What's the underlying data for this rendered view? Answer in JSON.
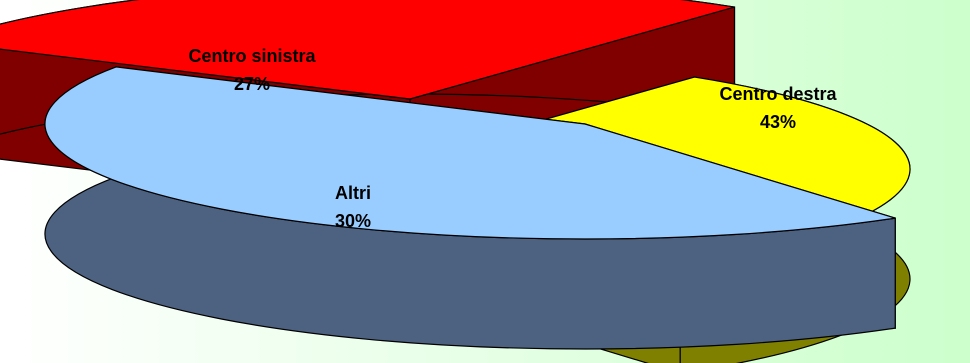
{
  "chart_data": {
    "type": "pie",
    "style": "exploded-3d",
    "background_color": "#ccffcc",
    "slices": [
      {
        "name": "Centro sinistra",
        "value": 27,
        "value_label": "27%",
        "top_color": "#ff0000",
        "side_color": "#800000"
      },
      {
        "name": "Altri",
        "value": 30,
        "value_label": "30%",
        "top_color": "#ffff00",
        "side_color": "#808000"
      },
      {
        "name": "Centro destra",
        "value": 43,
        "value_label": "43%",
        "top_color": "#99ccff",
        "side_color": "#4d6181"
      }
    ]
  }
}
